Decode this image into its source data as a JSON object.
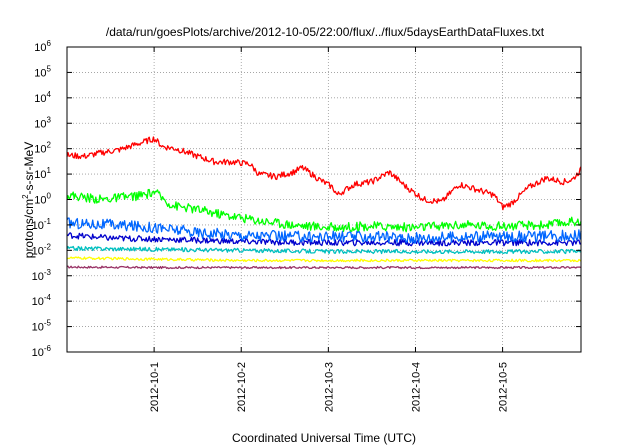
{
  "chart_data": {
    "type": "line",
    "title": "/data/run/goesPlots/archive/2012-10-05/22:00/flux/../flux/5daysEarthDataFluxes.txt",
    "xlabel": "Coordinated Universal Time (UTC)",
    "ylabel": {
      "base": "protons/cm",
      "sup": "2",
      "rest": "-s-sr-MeV"
    },
    "yscale": "log",
    "ylim": [
      1e-06,
      1000000.0
    ],
    "xlim": [
      0.0,
      5.9
    ],
    "y_ticks": [
      {
        "base": "10",
        "exp": "-6",
        "value": 1e-06
      },
      {
        "base": "10",
        "exp": "-5",
        "value": 1e-05
      },
      {
        "base": "10",
        "exp": "-4",
        "value": 0.0001
      },
      {
        "base": "10",
        "exp": "-3",
        "value": 0.001
      },
      {
        "base": "10",
        "exp": "-2",
        "value": 0.01
      },
      {
        "base": "10",
        "exp": "-1",
        "value": 0.1
      },
      {
        "base": "10",
        "exp": "0",
        "value": 1
      },
      {
        "base": "10",
        "exp": "1",
        "value": 10
      },
      {
        "base": "10",
        "exp": "2",
        "value": 100
      },
      {
        "base": "10",
        "exp": "3",
        "value": 1000
      },
      {
        "base": "10",
        "exp": "4",
        "value": 10000
      },
      {
        "base": "10",
        "exp": "5",
        "value": 100000
      },
      {
        "base": "10",
        "exp": "6",
        "value": 1000000
      }
    ],
    "x_ticks": [
      {
        "label": "2012-10-1",
        "value": 1
      },
      {
        "label": "2012-10-2",
        "value": 2
      },
      {
        "label": "2012-10-3",
        "value": 3
      },
      {
        "label": "2012-10-4",
        "value": 4
      },
      {
        "label": "2012-10-5",
        "value": 5
      }
    ],
    "grid": true,
    "legend": "none",
    "series": [
      {
        "color": "#ff0000",
        "noise": 0.12,
        "x": [
          0,
          0.2,
          0.4,
          0.6,
          0.8,
          1.0,
          1.1,
          1.25,
          1.5,
          1.7,
          1.9,
          2.1,
          2.2,
          2.4,
          2.6,
          2.7,
          2.9,
          3.05,
          3.1,
          3.3,
          3.5,
          3.7,
          3.9,
          4.1,
          4.3,
          4.5,
          4.7,
          4.9,
          5.0,
          5.1,
          5.3,
          5.5,
          5.7,
          5.8,
          5.9
        ],
        "y": [
          55,
          50,
          70,
          90,
          150,
          250,
          120,
          100,
          50,
          30,
          30,
          25,
          10,
          8,
          12,
          18,
          6,
          3,
          1.5,
          4,
          5,
          12,
          3,
          1,
          0.8,
          4,
          2.5,
          1.5,
          0.5,
          0.7,
          3,
          7,
          5,
          6,
          15
        ]
      },
      {
        "color": "#00ff00",
        "noise": 0.18,
        "x": [
          0,
          0.4,
          0.9,
          1.0,
          1.2,
          1.5,
          1.8,
          2.2,
          2.6,
          3.0,
          3.5,
          4.0,
          4.5,
          5.0,
          5.5,
          5.9
        ],
        "y": [
          1.5,
          1.0,
          1.5,
          2.0,
          0.6,
          0.4,
          0.25,
          0.15,
          0.1,
          0.08,
          0.09,
          0.08,
          0.1,
          0.09,
          0.1,
          0.15
        ]
      },
      {
        "color": "#0066ff",
        "noise": 0.22,
        "x": [
          0,
          0.5,
          1.0,
          1.5,
          2.0,
          2.5,
          3.0,
          3.5,
          4.0,
          4.5,
          5.0,
          5.5,
          5.9
        ],
        "y": [
          0.12,
          0.1,
          0.08,
          0.05,
          0.04,
          0.035,
          0.035,
          0.035,
          0.03,
          0.035,
          0.035,
          0.035,
          0.04
        ]
      },
      {
        "color": "#0000cc",
        "noise": 0.12,
        "x": [
          0,
          0.5,
          1.0,
          1.5,
          2.0,
          3.0,
          4.0,
          5.0,
          5.9
        ],
        "y": [
          0.04,
          0.03,
          0.028,
          0.025,
          0.022,
          0.02,
          0.02,
          0.02,
          0.02
        ]
      },
      {
        "color": "#00bfbf",
        "noise": 0.08,
        "x": [
          0,
          1.0,
          2.0,
          3.0,
          4.0,
          5.0,
          5.9
        ],
        "y": [
          0.012,
          0.011,
          0.01,
          0.009,
          0.009,
          0.009,
          0.009
        ]
      },
      {
        "color": "#ffff00",
        "noise": 0.05,
        "x": [
          0,
          1.0,
          2.0,
          3.0,
          4.0,
          5.0,
          5.9
        ],
        "y": [
          0.005,
          0.0045,
          0.004,
          0.004,
          0.004,
          0.004,
          0.004
        ]
      },
      {
        "color": "#993366",
        "noise": 0.04,
        "x": [
          0,
          1.0,
          2.0,
          3.0,
          4.0,
          5.0,
          5.9
        ],
        "y": [
          0.0022,
          0.0021,
          0.0021,
          0.0021,
          0.0021,
          0.0021,
          0.0021
        ]
      }
    ]
  }
}
